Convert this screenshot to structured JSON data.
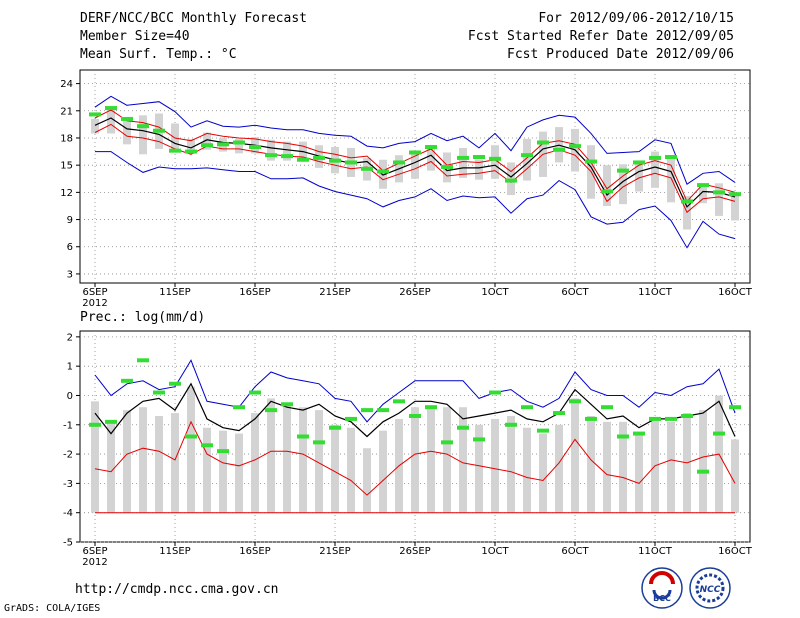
{
  "header": {
    "title": "DERF/NCC/BCC Monthly Forecast",
    "member_size": "Member Size=40",
    "panel1_label": "Mean Surf. Temp.: °C",
    "period": "For 2012/09/06-2012/10/15",
    "start_ref": "Fcst Started Refer Date 2012/09/05",
    "produced": "Fcst Produced Date 2012/09/06"
  },
  "footer": {
    "url": "http://cmdp.ncc.cma.gov.cn",
    "grads": "GrADS: COLA/IGES"
  },
  "logos": {
    "bcc": "BCC",
    "ncc": "NCC"
  },
  "colors": {
    "ensemble_mean": "#000000",
    "spread_inner": "#e60000",
    "spread_outer": "#0000cc",
    "observed": "#33dd33",
    "range_bar": "#d3d3d3",
    "grid": "#888888"
  },
  "chart_data": [
    {
      "type": "line",
      "title": "Mean Surf. Temp.: °C",
      "x_ticks": [
        "6SEP",
        "11SEP",
        "16SEP",
        "21SEP",
        "26SEP",
        "1OCT",
        "6OCT",
        "11OCT",
        "16OCT"
      ],
      "x_sublabel": "2012",
      "y_ticks": [
        3,
        6,
        9,
        12,
        15,
        18,
        21,
        24
      ],
      "ylim": [
        2,
        25.5
      ],
      "grid": true,
      "days": 41,
      "series": [
        {
          "name": "ensemble mean",
          "values": [
            19.4,
            20.2,
            19.0,
            18.8,
            18.4,
            17.4,
            16.9,
            17.8,
            17.5,
            17.4,
            17.2,
            16.9,
            16.7,
            16.5,
            16.0,
            15.6,
            15.2,
            15.4,
            13.9,
            14.6,
            15.3,
            16.1,
            14.4,
            14.7,
            14.7,
            15.0,
            13.7,
            15.2,
            16.8,
            17.2,
            16.7,
            14.8,
            11.7,
            13.2,
            14.3,
            14.8,
            14.3,
            10.4,
            12.1,
            12.0,
            11.5
          ]
        },
        {
          "name": "upper spread",
          "values": [
            20.2,
            21.1,
            19.9,
            19.7,
            19.2,
            18.0,
            17.7,
            18.5,
            18.2,
            18.0,
            17.9,
            17.6,
            17.4,
            17.1,
            16.5,
            16.2,
            15.8,
            16.0,
            14.4,
            15.2,
            16.0,
            16.8,
            15.0,
            15.4,
            15.3,
            15.6,
            14.3,
            15.8,
            17.4,
            17.7,
            17.3,
            15.3,
            12.4,
            13.8,
            15.0,
            15.5,
            15.0,
            11.0,
            12.9,
            12.5,
            12.0
          ]
        },
        {
          "name": "lower spread",
          "values": [
            18.6,
            19.5,
            18.2,
            18.0,
            17.6,
            16.8,
            16.2,
            17.1,
            16.8,
            16.8,
            16.5,
            16.2,
            16.0,
            15.9,
            15.4,
            15.0,
            14.6,
            14.8,
            13.4,
            14.0,
            14.6,
            15.4,
            13.8,
            14.0,
            14.1,
            14.4,
            13.1,
            14.6,
            16.2,
            16.7,
            16.1,
            14.3,
            11.0,
            12.6,
            13.6,
            14.1,
            13.6,
            9.8,
            11.3,
            11.5,
            11.0
          ]
        },
        {
          "name": "ensemble max",
          "values": [
            21.4,
            22.6,
            21.6,
            21.8,
            22.0,
            20.9,
            19.2,
            19.9,
            19.3,
            19.2,
            19.4,
            19.1,
            18.9,
            18.9,
            18.5,
            18.3,
            18.2,
            17.1,
            16.9,
            17.4,
            17.6,
            18.5,
            17.7,
            18.2,
            16.9,
            18.5,
            16.6,
            19.2,
            20.0,
            20.5,
            20.3,
            18.5,
            16.3,
            16.4,
            16.5,
            17.8,
            17.4,
            12.9,
            14.1,
            14.3,
            13.1
          ]
        },
        {
          "name": "ensemble min",
          "values": [
            16.5,
            16.5,
            15.3,
            14.2,
            14.8,
            14.6,
            14.6,
            14.7,
            14.5,
            14.3,
            14.3,
            13.5,
            13.5,
            13.6,
            12.7,
            12.1,
            11.7,
            11.3,
            10.4,
            11.1,
            11.5,
            12.4,
            11.1,
            11.6,
            11.4,
            11.5,
            9.7,
            11.3,
            11.7,
            13.3,
            12.3,
            9.3,
            8.5,
            8.7,
            10.1,
            10.5,
            8.9,
            5.9,
            8.8,
            7.4,
            6.9
          ]
        },
        {
          "name": "observed",
          "values": [
            20.6,
            21.3,
            20.1,
            19.3,
            18.8,
            16.6,
            16.5,
            17.2,
            17.3,
            17.5,
            17.0,
            16.1,
            16.0,
            15.6,
            15.8,
            15.5,
            15.3,
            14.6,
            14.3,
            15.3,
            16.4,
            17.0,
            14.8,
            15.8,
            15.9,
            15.7,
            13.3,
            16.1,
            17.5,
            16.7,
            17.1,
            15.4,
            12.1,
            14.4,
            15.3,
            15.8,
            15.9,
            11.0,
            12.8,
            12.0,
            11.8
          ]
        }
      ]
    },
    {
      "type": "line",
      "title": "Prec.: log(mm/d)",
      "x_ticks": [
        "6SEP",
        "11SEP",
        "16SEP",
        "21SEP",
        "26SEP",
        "1OCT",
        "6OCT",
        "11OCT",
        "16OCT"
      ],
      "x_sublabel": "2012",
      "y_ticks": [
        -5,
        -4,
        -3,
        -2,
        -1,
        0,
        1,
        2
      ],
      "ylim": [
        -5,
        2.2
      ],
      "grid": true,
      "days": 41,
      "series": [
        {
          "name": "ensemble mean",
          "values": [
            -0.6,
            -1.3,
            -0.6,
            -0.2,
            -0.1,
            -0.5,
            0.4,
            -0.8,
            -1.1,
            -1.2,
            -0.8,
            -0.2,
            -0.4,
            -0.5,
            -0.3,
            -0.7,
            -0.9,
            -1.4,
            -0.9,
            -0.6,
            -0.2,
            -0.2,
            -0.3,
            -0.8,
            -0.7,
            -0.6,
            -0.5,
            -0.8,
            -0.9,
            -0.6,
            0.2,
            -0.3,
            -0.8,
            -0.7,
            -1.1,
            -0.8,
            -0.8,
            -0.7,
            -0.6,
            -0.2,
            -1.4
          ]
        },
        {
          "name": "spread upper",
          "values": [
            0.7,
            0.0,
            0.4,
            0.5,
            0.2,
            0.3,
            1.2,
            -0.2,
            -0.3,
            -0.4,
            0.3,
            0.8,
            0.6,
            0.5,
            0.4,
            -0.1,
            -0.2,
            -0.9,
            -0.3,
            0.1,
            0.5,
            0.5,
            0.5,
            0.5,
            -0.1,
            0.1,
            0.2,
            -0.2,
            -0.4,
            -0.1,
            0.8,
            0.2,
            0.0,
            0.0,
            -0.4,
            0.1,
            0.0,
            0.3,
            0.4,
            0.9,
            -0.6
          ]
        },
        {
          "name": "spread lower",
          "values": [
            -2.5,
            -2.6,
            -2.0,
            -1.8,
            -1.9,
            -2.2,
            -0.9,
            -2.0,
            -2.3,
            -2.4,
            -2.2,
            -1.9,
            -1.9,
            -2.0,
            -2.3,
            -2.6,
            -2.9,
            -3.4,
            -2.9,
            -2.4,
            -2.0,
            -1.9,
            -2.0,
            -2.3,
            -2.4,
            -2.5,
            -2.6,
            -2.8,
            -2.9,
            -2.3,
            -1.5,
            -2.2,
            -2.7,
            -2.8,
            -3.0,
            -2.4,
            -2.2,
            -2.3,
            -2.1,
            -2.0,
            -3.0
          ]
        },
        {
          "name": "ensemble min",
          "values": [
            -4.0,
            -4.0,
            -4.0,
            -4.0,
            -4.0,
            -4.0,
            -4.0,
            -4.0,
            -4.0,
            -4.0,
            -4.0,
            -4.0,
            -4.0,
            -4.0,
            -4.0,
            -4.0,
            -4.0,
            -4.0,
            -4.0,
            -4.0,
            -4.0,
            -4.0,
            -4.0,
            -4.0,
            -4.0,
            -4.0,
            -4.0,
            -4.0,
            -4.0,
            -4.0,
            -4.0,
            -4.0,
            -4.0,
            -4.0,
            -4.0,
            -4.0,
            -4.0,
            -4.0,
            -4.0,
            -4.0,
            -4.0
          ]
        },
        {
          "name": "observed",
          "values": [
            -1.0,
            -0.9,
            0.5,
            1.2,
            0.1,
            0.4,
            -1.4,
            -1.7,
            -1.9,
            -0.4,
            0.1,
            -0.5,
            -0.3,
            -1.4,
            -1.6,
            -1.1,
            -0.8,
            -0.5,
            -0.5,
            -0.2,
            -0.7,
            -0.4,
            -1.6,
            -1.1,
            -1.5,
            0.1,
            -1.0,
            -0.4,
            -1.2,
            -0.6,
            -0.2,
            -0.8,
            -0.4,
            -1.4,
            -1.3,
            -0.8,
            -0.8,
            -0.7,
            -2.6,
            -1.3,
            -0.4
          ]
        }
      ]
    }
  ]
}
